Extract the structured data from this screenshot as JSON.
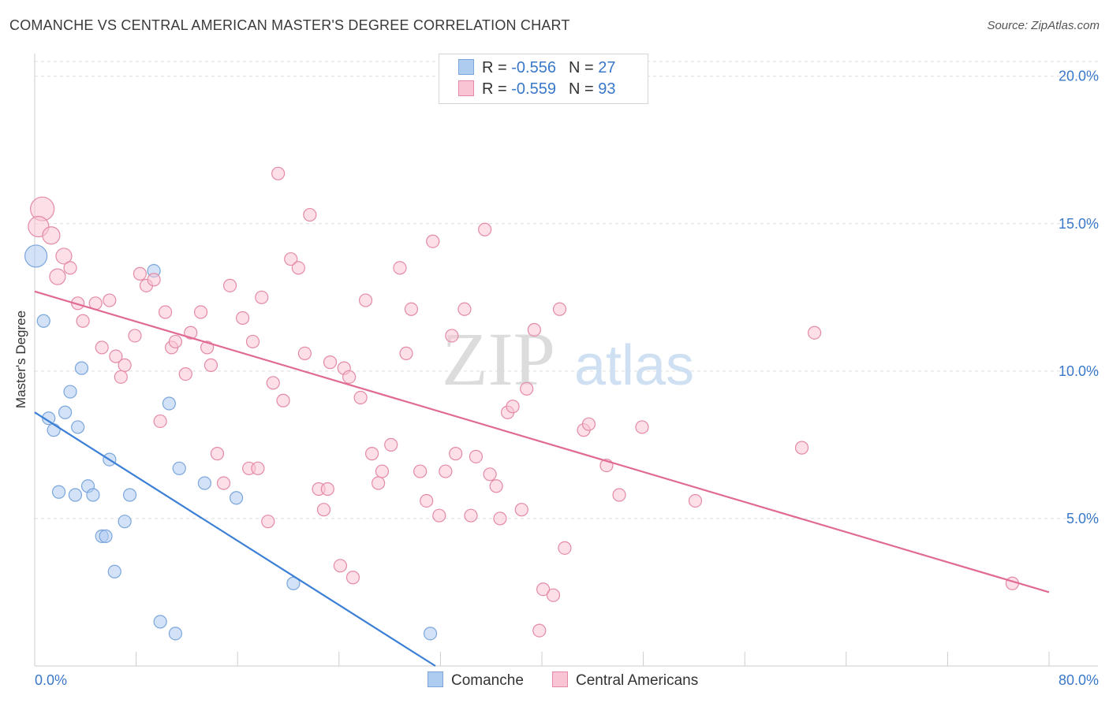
{
  "header": {
    "title": "COMANCHE VS CENTRAL AMERICAN MASTER'S DEGREE CORRELATION CHART",
    "source": "Source: ZipAtlas.com"
  },
  "watermark": {
    "zip": "ZIP",
    "atlas": "atlas"
  },
  "legend": {
    "rows": [
      {
        "r_label": "R = ",
        "r_value": "-0.556",
        "n_label": "N = ",
        "n_value": "27",
        "color": "#aecbf0",
        "border": "#7aa6dc"
      },
      {
        "r_label": "R = ",
        "r_value": "-0.559",
        "n_label": "N = ",
        "n_value": "93",
        "color": "#f9c4d4",
        "border": "#e48aa6"
      }
    ]
  },
  "bottom_legend": [
    {
      "label": "Comanche",
      "color": "#aecbf0",
      "border": "#7aa6dc"
    },
    {
      "label": "Central Americans",
      "color": "#f9c4d4",
      "border": "#e48aa6"
    }
  ],
  "chart_data": {
    "type": "scatter",
    "title": "COMANCHE VS CENTRAL AMERICAN MASTER'S DEGREE CORRELATION CHART",
    "xlabel": "",
    "ylabel": "Master's Degree",
    "xlim": [
      0,
      80
    ],
    "ylim": [
      0,
      20.5
    ],
    "x_tick_labels": [
      "0.0%",
      "80.0%"
    ],
    "y_ticks": [
      5,
      10,
      15,
      20
    ],
    "y_tick_labels": [
      "5.0%",
      "10.0%",
      "15.0%",
      "20.0%"
    ],
    "grid": "horizontal dashed",
    "legend_placement": "top-center",
    "series": [
      {
        "name": "Comanche",
        "color": "#7aa6dc",
        "fill": "#aecbf0",
        "line_color": "#3b7fd6",
        "trend": {
          "x": [
            0,
            31.6
          ],
          "y": [
            8.6,
            0
          ]
        },
        "points": [
          [
            0.1,
            13.9,
            28
          ],
          [
            0.7,
            11.7,
            16
          ],
          [
            1.1,
            8.4,
            16
          ],
          [
            1.5,
            8.0,
            16
          ],
          [
            2.4,
            8.6,
            16
          ],
          [
            2.8,
            9.3,
            16
          ],
          [
            3.7,
            10.1,
            16
          ],
          [
            3.4,
            8.1,
            16
          ],
          [
            1.9,
            5.9,
            16
          ],
          [
            3.2,
            5.8,
            16
          ],
          [
            4.2,
            6.1,
            16
          ],
          [
            4.6,
            5.8,
            16
          ],
          [
            5.9,
            7.0,
            16
          ],
          [
            7.5,
            5.8,
            16
          ],
          [
            7.1,
            4.9,
            16
          ],
          [
            5.3,
            4.4,
            16
          ],
          [
            5.6,
            4.4,
            16
          ],
          [
            6.3,
            3.2,
            16
          ],
          [
            9.4,
            13.4,
            16
          ],
          [
            10.6,
            8.9,
            16
          ],
          [
            11.4,
            6.7,
            16
          ],
          [
            13.4,
            6.2,
            16
          ],
          [
            15.9,
            5.7,
            16
          ],
          [
            20.4,
            2.8,
            16
          ],
          [
            31.2,
            1.1,
            16
          ],
          [
            9.9,
            1.5,
            16
          ],
          [
            11.1,
            1.1,
            16
          ]
        ]
      },
      {
        "name": "Central Americans",
        "color": "#e48aa6",
        "fill": "#f9c4d4",
        "line_color": "#e06a93",
        "trend": {
          "x": [
            0,
            80
          ],
          "y": [
            12.7,
            2.5
          ]
        },
        "points": [
          [
            0.6,
            15.5,
            30
          ],
          [
            0.3,
            14.9,
            26
          ],
          [
            1.3,
            14.6,
            22
          ],
          [
            2.3,
            13.9,
            20
          ],
          [
            1.8,
            13.2,
            20
          ],
          [
            2.8,
            13.5,
            16
          ],
          [
            3.4,
            12.3,
            16
          ],
          [
            3.8,
            11.7,
            16
          ],
          [
            4.8,
            12.3,
            16
          ],
          [
            5.9,
            12.4,
            16
          ],
          [
            5.3,
            10.8,
            16
          ],
          [
            6.4,
            10.5,
            16
          ],
          [
            7.1,
            10.2,
            16
          ],
          [
            6.8,
            9.8,
            16
          ],
          [
            7.9,
            11.2,
            16
          ],
          [
            8.3,
            13.3,
            16
          ],
          [
            8.8,
            12.9,
            16
          ],
          [
            9.4,
            13.1,
            16
          ],
          [
            10.3,
            12.0,
            16
          ],
          [
            10.8,
            10.8,
            16
          ],
          [
            11.1,
            11.0,
            16
          ],
          [
            11.9,
            9.9,
            16
          ],
          [
            12.3,
            11.3,
            16
          ],
          [
            13.1,
            12.0,
            16
          ],
          [
            13.6,
            10.8,
            16
          ],
          [
            13.9,
            10.2,
            16
          ],
          [
            14.4,
            7.2,
            16
          ],
          [
            14.9,
            6.2,
            16
          ],
          [
            15.4,
            12.9,
            16
          ],
          [
            16.4,
            11.8,
            16
          ],
          [
            17.2,
            11.0,
            16
          ],
          [
            17.9,
            12.5,
            16
          ],
          [
            16.9,
            6.7,
            16
          ],
          [
            18.4,
            4.9,
            16
          ],
          [
            18.8,
            9.6,
            16
          ],
          [
            19.2,
            16.7,
            16
          ],
          [
            19.6,
            9.0,
            16
          ],
          [
            20.2,
            13.8,
            16
          ],
          [
            20.8,
            13.5,
            16
          ],
          [
            21.3,
            10.6,
            16
          ],
          [
            21.7,
            15.3,
            16
          ],
          [
            22.4,
            6.0,
            16
          ],
          [
            22.8,
            5.3,
            16
          ],
          [
            23.3,
            10.3,
            16
          ],
          [
            24.1,
            3.4,
            16
          ],
          [
            24.4,
            10.1,
            16
          ],
          [
            24.8,
            9.8,
            16
          ],
          [
            25.1,
            3.0,
            16
          ],
          [
            25.7,
            9.1,
            16
          ],
          [
            26.1,
            12.4,
            16
          ],
          [
            26.6,
            7.2,
            16
          ],
          [
            27.1,
            6.2,
            16
          ],
          [
            27.4,
            6.6,
            16
          ],
          [
            28.1,
            7.5,
            16
          ],
          [
            28.8,
            13.5,
            16
          ],
          [
            29.3,
            10.6,
            16
          ],
          [
            29.7,
            12.1,
            16
          ],
          [
            30.4,
            6.6,
            16
          ],
          [
            30.9,
            5.6,
            16
          ],
          [
            31.4,
            14.4,
            16
          ],
          [
            31.9,
            5.1,
            16
          ],
          [
            32.4,
            6.6,
            16
          ],
          [
            32.9,
            11.2,
            16
          ],
          [
            33.2,
            7.2,
            16
          ],
          [
            33.9,
            12.1,
            16
          ],
          [
            34.4,
            5.1,
            16
          ],
          [
            34.8,
            7.1,
            16
          ],
          [
            35.5,
            14.8,
            16
          ],
          [
            35.9,
            6.5,
            16
          ],
          [
            36.4,
            6.1,
            16
          ],
          [
            36.7,
            5.0,
            16
          ],
          [
            37.3,
            8.6,
            16
          ],
          [
            37.7,
            8.8,
            16
          ],
          [
            38.4,
            5.3,
            16
          ],
          [
            38.8,
            9.4,
            16
          ],
          [
            39.4,
            11.4,
            16
          ],
          [
            39.8,
            1.2,
            16
          ],
          [
            40.1,
            2.6,
            16
          ],
          [
            40.9,
            2.4,
            16
          ],
          [
            41.4,
            12.1,
            16
          ],
          [
            41.8,
            4.0,
            16
          ],
          [
            43.3,
            8.0,
            16
          ],
          [
            43.7,
            8.2,
            16
          ],
          [
            45.1,
            6.8,
            16
          ],
          [
            46.1,
            5.8,
            16
          ],
          [
            47.9,
            8.1,
            16
          ],
          [
            52.1,
            5.6,
            16
          ],
          [
            60.5,
            7.4,
            16
          ],
          [
            61.5,
            11.3,
            16
          ],
          [
            77.1,
            2.8,
            16
          ],
          [
            17.6,
            6.7,
            16
          ],
          [
            23.1,
            6.0,
            16
          ],
          [
            9.9,
            8.3,
            16
          ]
        ]
      }
    ]
  }
}
